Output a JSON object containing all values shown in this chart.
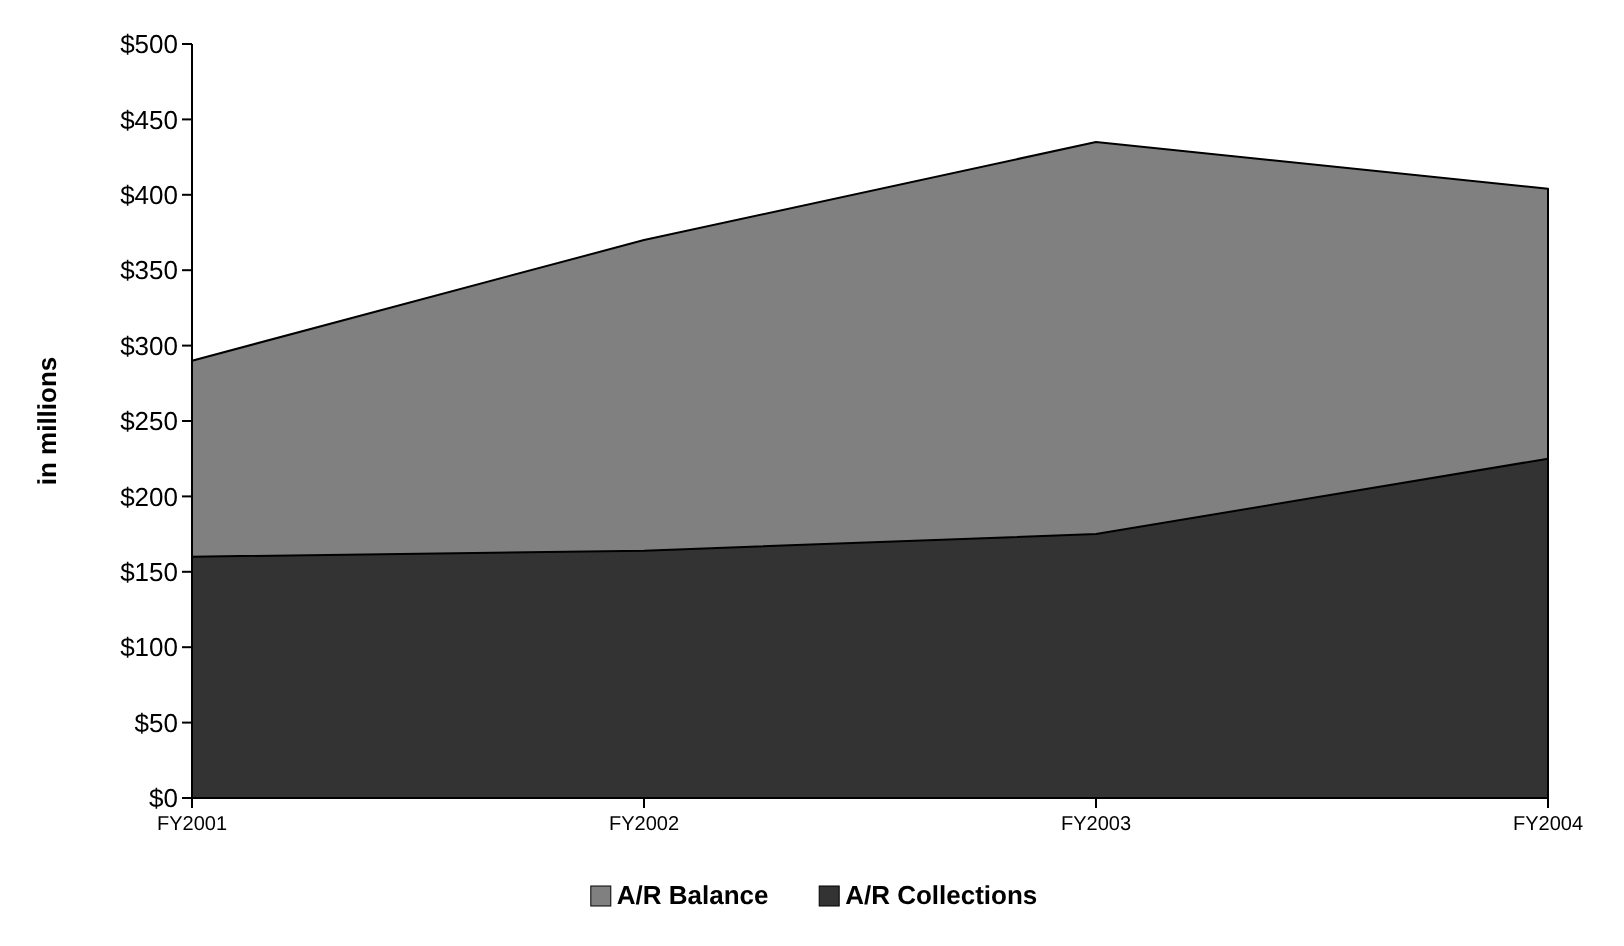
{
  "chart_data": {
    "type": "area",
    "ylabel": "in millions",
    "categories": [
      "FY2001",
      "FY2002",
      "FY2003",
      "FY2004"
    ],
    "series": [
      {
        "name": "A/R Balance",
        "color": "#808080",
        "values": [
          290,
          370,
          435,
          404
        ]
      },
      {
        "name": "A/R Collections",
        "color": "#333333",
        "values": [
          160,
          164,
          175,
          225
        ]
      }
    ],
    "ylim": [
      0,
      500
    ],
    "yticks": [
      {
        "value": 0,
        "label": "$0"
      },
      {
        "value": 50,
        "label": "$50"
      },
      {
        "value": 100,
        "label": "$100"
      },
      {
        "value": 150,
        "label": "$150"
      },
      {
        "value": 200,
        "label": "$200"
      },
      {
        "value": 250,
        "label": "$250"
      },
      {
        "value": 300,
        "label": "$300"
      },
      {
        "value": 350,
        "label": "$350"
      },
      {
        "value": 400,
        "label": "$400"
      },
      {
        "value": 450,
        "label": "$450"
      },
      {
        "value": 500,
        "label": "$500"
      }
    ],
    "grid": false,
    "legend": "bottom"
  }
}
